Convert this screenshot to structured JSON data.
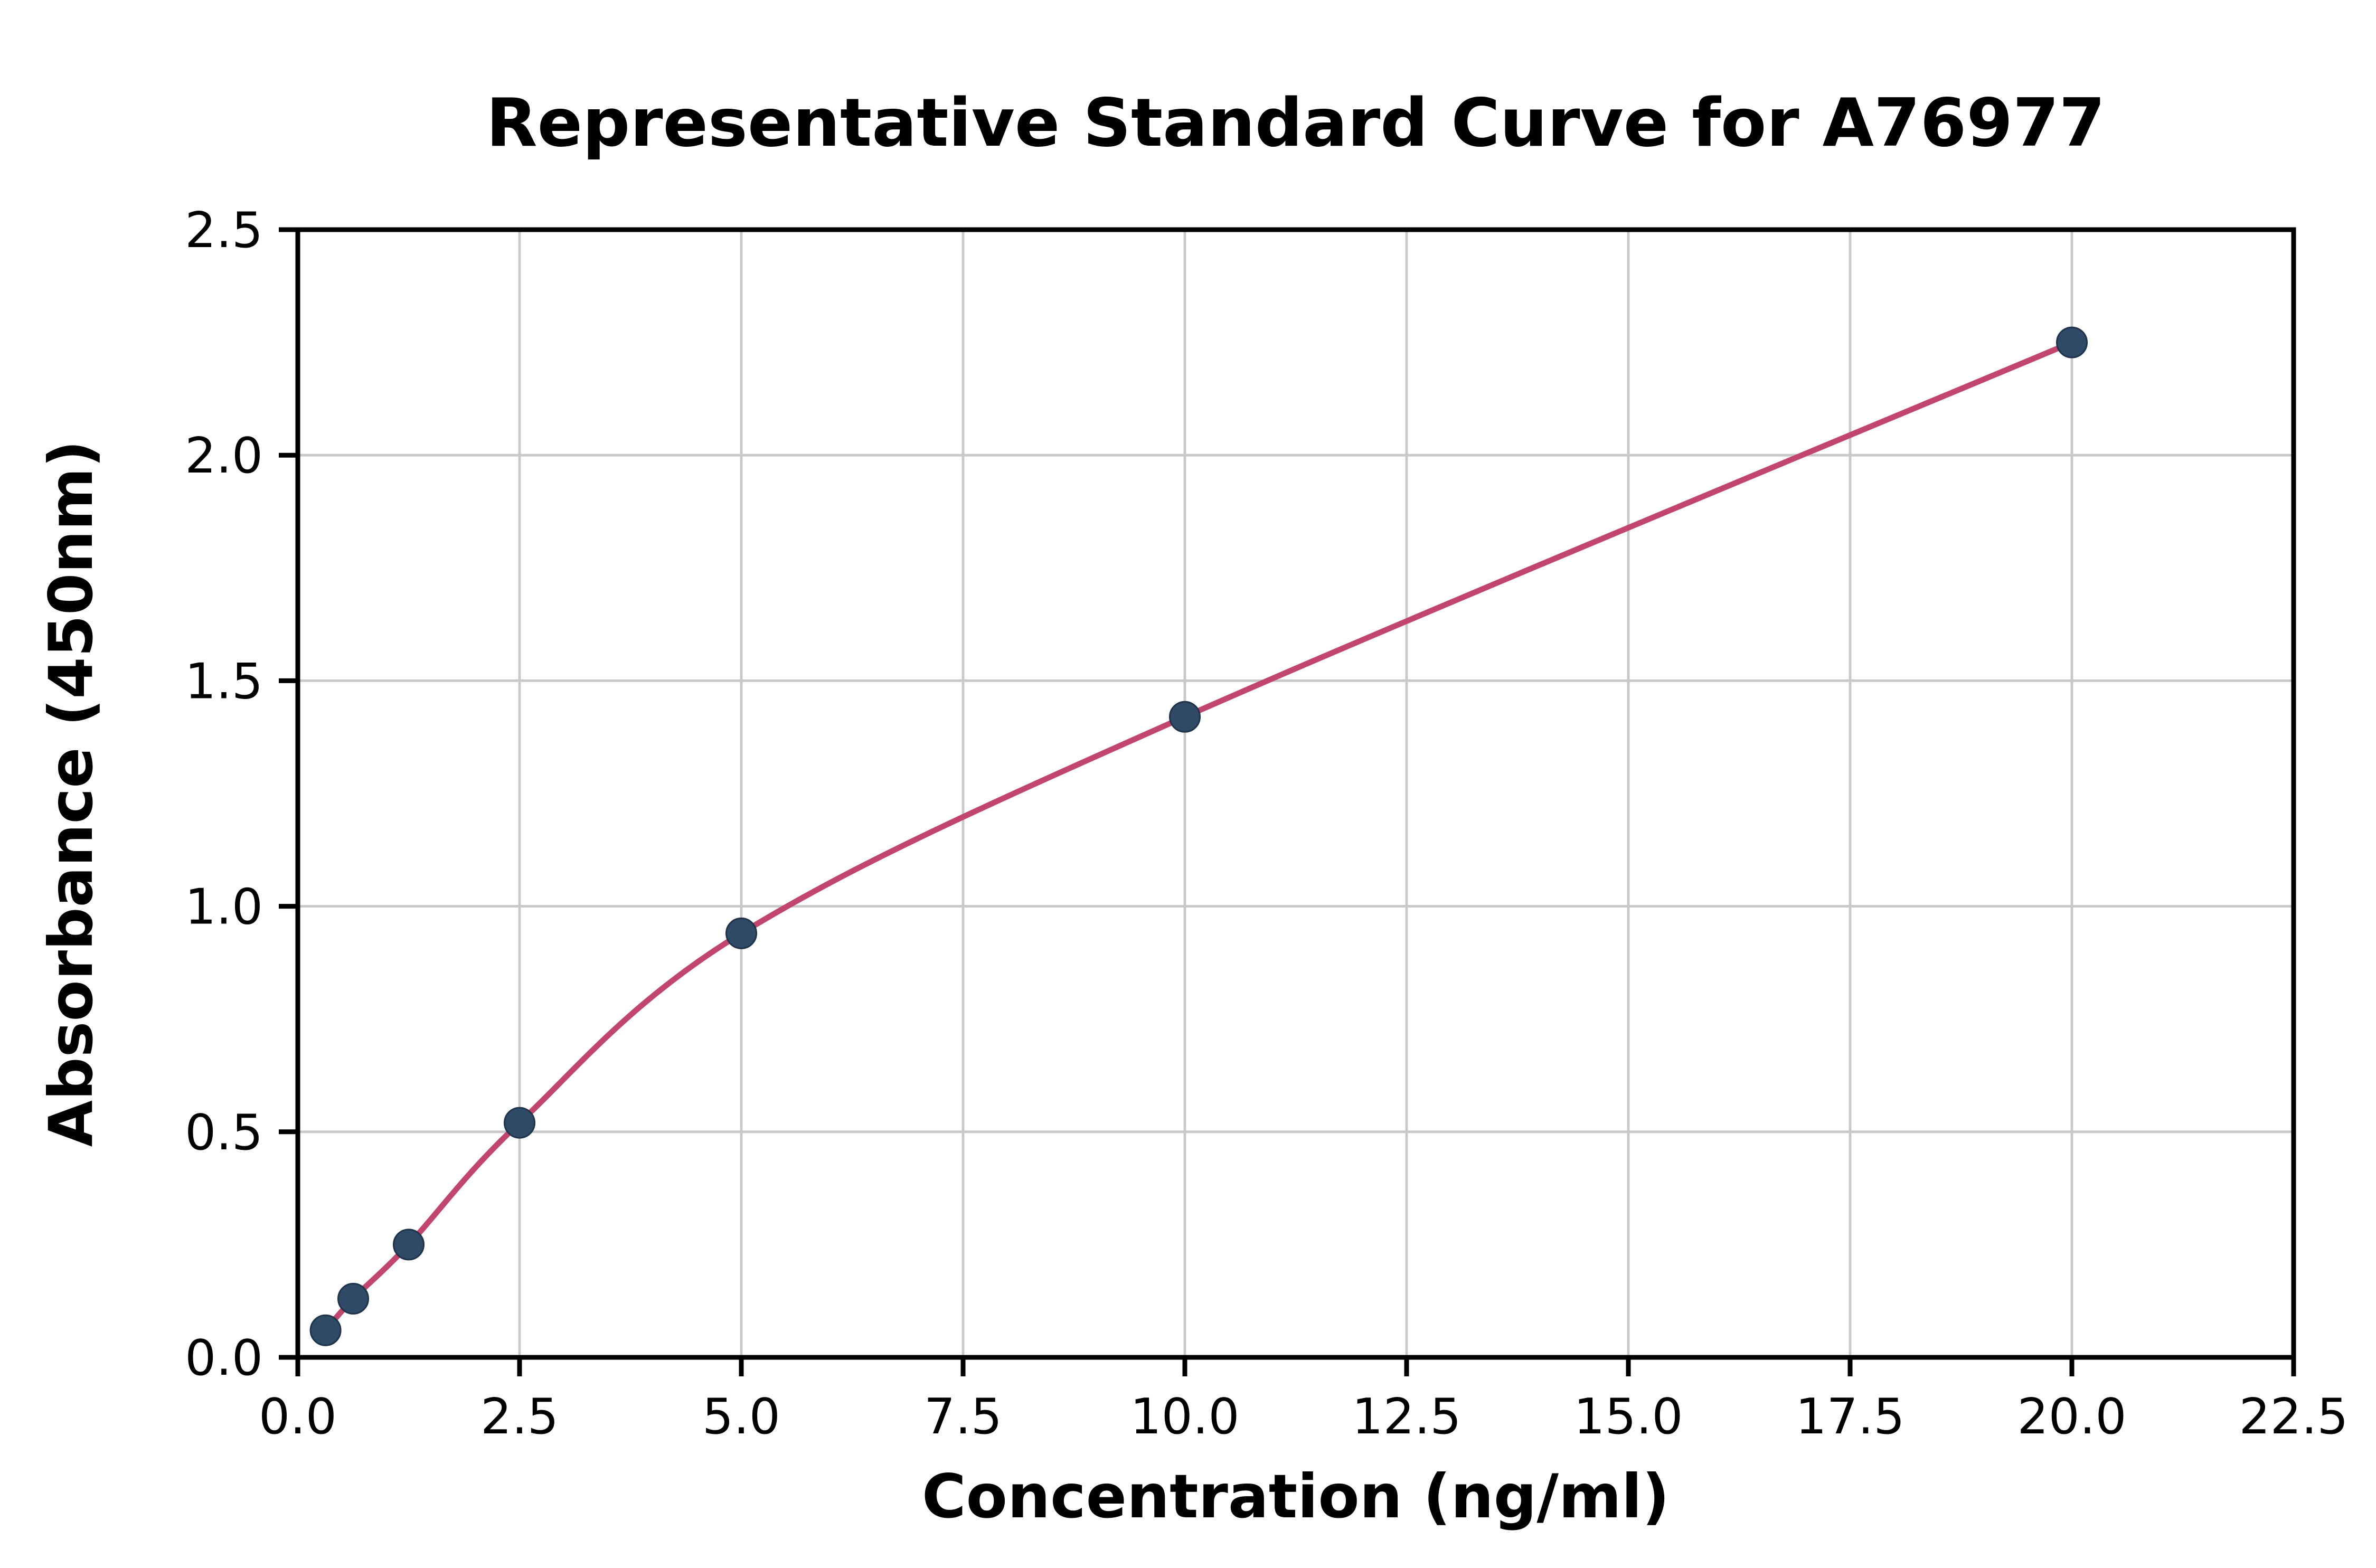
{
  "chart_data": {
    "type": "scatter",
    "title": "Representative Standard Curve for A76977",
    "xlabel": "Concentration (ng/ml)",
    "ylabel": "Absorbance (450nm)",
    "xlim": [
      0,
      22.5
    ],
    "ylim": [
      0,
      2.5
    ],
    "grid": true,
    "legend": "none",
    "x_ticks": [
      0.0,
      2.5,
      5.0,
      7.5,
      10.0,
      12.5,
      15.0,
      17.5,
      20.0,
      22.5
    ],
    "x_tick_labels": [
      "0.0",
      "2.5",
      "5.0",
      "7.5",
      "10.0",
      "12.5",
      "15.0",
      "17.5",
      "20.0",
      "22.5"
    ],
    "y_ticks": [
      0.0,
      0.5,
      1.0,
      1.5,
      2.0,
      2.5
    ],
    "y_tick_labels": [
      "0.0",
      "0.5",
      "1.0",
      "1.5",
      "2.0",
      "2.5"
    ],
    "series": [
      {
        "name": "standard-points",
        "type": "scatter",
        "color": "#2e4a66",
        "x": [
          0.313,
          0.625,
          1.25,
          2.5,
          5.0,
          10.0,
          20.0
        ],
        "y": [
          0.06,
          0.13,
          0.25,
          0.52,
          0.94,
          1.42,
          2.25
        ]
      },
      {
        "name": "fit-curve",
        "type": "line",
        "color": "#c2456e",
        "x": [
          0.313,
          0.625,
          1.25,
          2.5,
          5.0,
          10.0,
          20.0
        ],
        "y": [
          0.06,
          0.13,
          0.25,
          0.52,
          0.94,
          1.42,
          2.25
        ]
      }
    ],
    "colors": {
      "point": "#2e4a66",
      "curve": "#c2456e",
      "grid": "#c8c8c8",
      "axis": "#000000",
      "background": "#ffffff"
    }
  }
}
